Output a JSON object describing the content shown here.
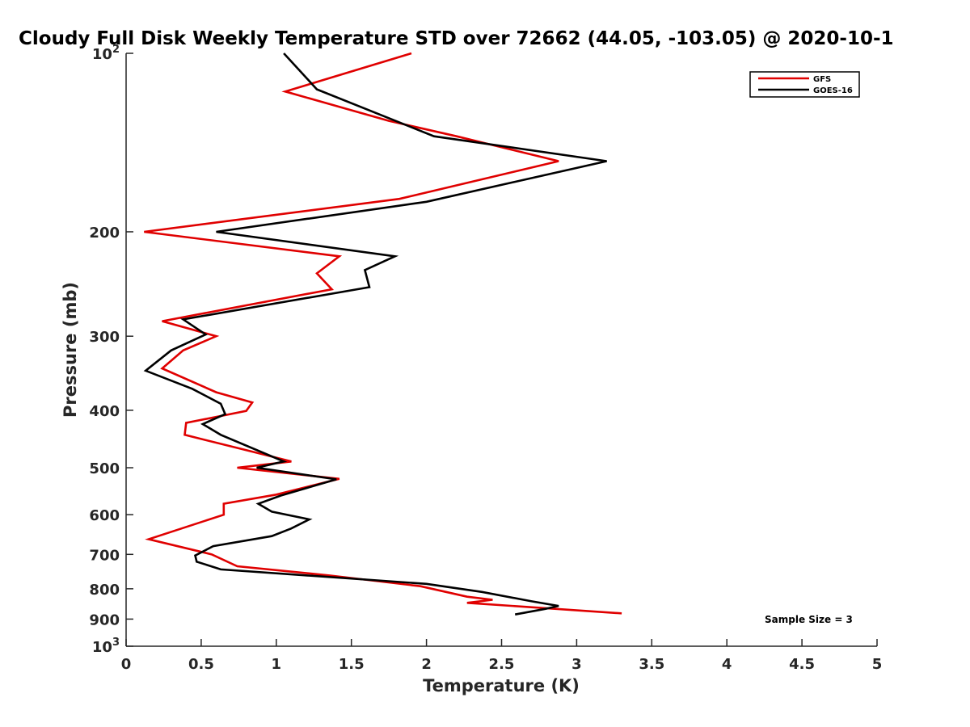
{
  "chart_data": {
    "type": "line",
    "title": "Cloudy Full Disk Weekly Temperature STD over 72662 (44.05, -103.05) @ 2020-10-1",
    "xlabel": "Temperature (K)",
    "ylabel": "Pressure (mb)",
    "xlim": [
      0,
      5
    ],
    "ylim": [
      100,
      1000
    ],
    "yscale": "log",
    "y_reversed": true,
    "x_ticks": [
      "0",
      "0.5",
      "1",
      "1.5",
      "2",
      "2.5",
      "3",
      "3.5",
      "4",
      "4.5",
      "5"
    ],
    "x_tick_values": [
      0,
      0.5,
      1,
      1.5,
      2,
      2.5,
      3,
      3.5,
      4,
      4.5,
      5
    ],
    "y_ticks": [
      {
        "value": 100,
        "base": "10",
        "exp": "2"
      },
      {
        "value": 200,
        "label": "200"
      },
      {
        "value": 300,
        "label": "300"
      },
      {
        "value": 400,
        "label": "400"
      },
      {
        "value": 500,
        "label": "500"
      },
      {
        "value": 600,
        "label": "600"
      },
      {
        "value": 700,
        "label": "700"
      },
      {
        "value": 800,
        "label": "800"
      },
      {
        "value": 900,
        "label": "900"
      },
      {
        "value": 1000,
        "base": "10",
        "exp": "3"
      }
    ],
    "grid": false,
    "legend_position": "top-right",
    "annotation": "Sample Size = 3",
    "series": [
      {
        "name": "GFS",
        "color": "#e00000",
        "points": [
          {
            "x": 1.9,
            "p": 100
          },
          {
            "x": 1.06,
            "p": 116
          },
          {
            "x": 1.75,
            "p": 130
          },
          {
            "x": 2.2,
            "p": 138
          },
          {
            "x": 2.88,
            "p": 152
          },
          {
            "x": 1.82,
            "p": 176
          },
          {
            "x": 0.12,
            "p": 200
          },
          {
            "x": 1.42,
            "p": 220
          },
          {
            "x": 1.27,
            "p": 235
          },
          {
            "x": 1.37,
            "p": 250
          },
          {
            "x": 0.24,
            "p": 283
          },
          {
            "x": 0.6,
            "p": 300
          },
          {
            "x": 0.38,
            "p": 317
          },
          {
            "x": 0.24,
            "p": 340
          },
          {
            "x": 0.6,
            "p": 373
          },
          {
            "x": 0.84,
            "p": 388
          },
          {
            "x": 0.8,
            "p": 401
          },
          {
            "x": 0.4,
            "p": 420
          },
          {
            "x": 0.39,
            "p": 440
          },
          {
            "x": 0.8,
            "p": 467
          },
          {
            "x": 1.1,
            "p": 488
          },
          {
            "x": 0.74,
            "p": 500
          },
          {
            "x": 1.42,
            "p": 522
          },
          {
            "x": 1.0,
            "p": 555
          },
          {
            "x": 0.65,
            "p": 575
          },
          {
            "x": 0.65,
            "p": 600
          },
          {
            "x": 0.15,
            "p": 660
          },
          {
            "x": 0.57,
            "p": 700
          },
          {
            "x": 0.74,
            "p": 733
          },
          {
            "x": 1.36,
            "p": 760
          },
          {
            "x": 1.96,
            "p": 792
          },
          {
            "x": 2.27,
            "p": 825
          },
          {
            "x": 2.44,
            "p": 835
          },
          {
            "x": 2.27,
            "p": 845
          },
          {
            "x": 3.3,
            "p": 880
          }
        ]
      },
      {
        "name": "GOES-16",
        "color": "#000000",
        "points": [
          {
            "x": 1.05,
            "p": 100
          },
          {
            "x": 1.27,
            "p": 115
          },
          {
            "x": 2.05,
            "p": 138
          },
          {
            "x": 3.2,
            "p": 152
          },
          {
            "x": 2.0,
            "p": 178
          },
          {
            "x": 0.6,
            "p": 200
          },
          {
            "x": 1.79,
            "p": 220
          },
          {
            "x": 1.59,
            "p": 232
          },
          {
            "x": 1.62,
            "p": 248
          },
          {
            "x": 0.38,
            "p": 281
          },
          {
            "x": 0.53,
            "p": 298
          },
          {
            "x": 0.3,
            "p": 317
          },
          {
            "x": 0.13,
            "p": 343
          },
          {
            "x": 0.44,
            "p": 368
          },
          {
            "x": 0.63,
            "p": 390
          },
          {
            "x": 0.66,
            "p": 406
          },
          {
            "x": 0.51,
            "p": 422
          },
          {
            "x": 0.63,
            "p": 440
          },
          {
            "x": 1.05,
            "p": 488
          },
          {
            "x": 0.87,
            "p": 500
          },
          {
            "x": 1.4,
            "p": 523
          },
          {
            "x": 1.03,
            "p": 557
          },
          {
            "x": 0.88,
            "p": 575
          },
          {
            "x": 0.97,
            "p": 593
          },
          {
            "x": 1.22,
            "p": 611
          },
          {
            "x": 1.1,
            "p": 633
          },
          {
            "x": 0.97,
            "p": 652
          },
          {
            "x": 0.58,
            "p": 678
          },
          {
            "x": 0.46,
            "p": 703
          },
          {
            "x": 0.47,
            "p": 720
          },
          {
            "x": 0.63,
            "p": 742
          },
          {
            "x": 2.0,
            "p": 785
          },
          {
            "x": 2.37,
            "p": 810
          },
          {
            "x": 2.7,
            "p": 840
          },
          {
            "x": 2.88,
            "p": 855
          },
          {
            "x": 2.79,
            "p": 865
          },
          {
            "x": 2.59,
            "p": 884
          }
        ]
      }
    ]
  }
}
